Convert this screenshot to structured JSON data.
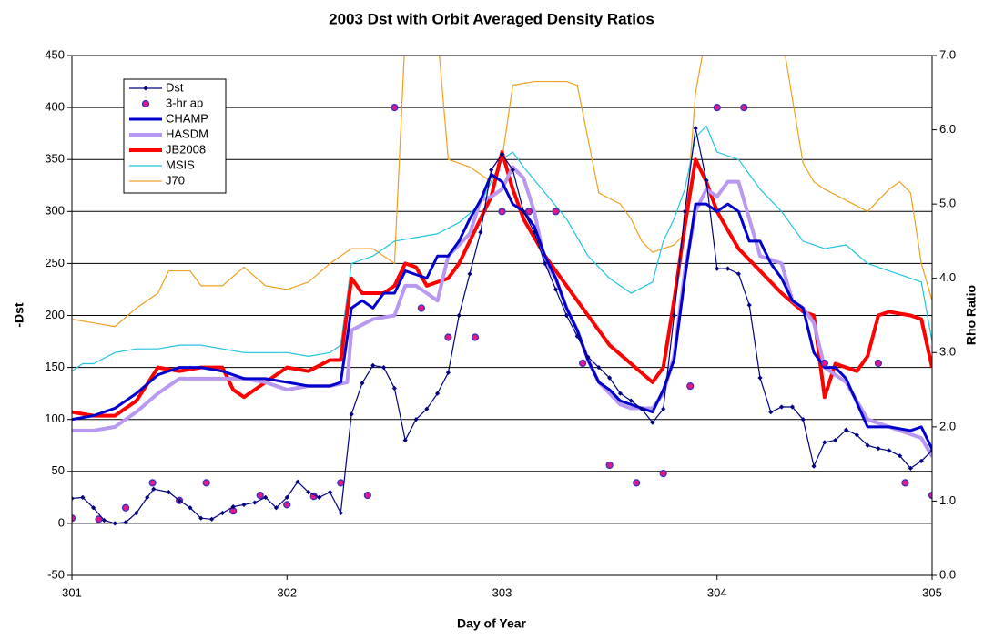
{
  "chart_data": {
    "type": "line",
    "title": "2003 Dst with Orbit Averaged Density Ratios",
    "xlabel": "Day of Year",
    "ylabel": "-Dst",
    "y2label": "Rho Ratio",
    "xlim": [
      301,
      305
    ],
    "xticks": [
      301,
      302,
      303,
      304,
      305
    ],
    "ylim": [
      -50,
      450
    ],
    "yticks": [
      -50,
      0,
      50,
      100,
      150,
      200,
      250,
      300,
      350,
      400,
      450
    ],
    "y2lim": [
      0,
      7
    ],
    "y2ticks": [
      {
        "value": 0,
        "label": "0.0"
      },
      {
        "value": 1,
        "label": "1.0"
      },
      {
        "value": 2,
        "label": "2.0"
      },
      {
        "value": 3,
        "label": "3.0"
      },
      {
        "value": 4,
        "label": "4.0"
      },
      {
        "value": 5,
        "label": "5.0"
      },
      {
        "value": 6,
        "label": "6.0"
      },
      {
        "value": 7,
        "label": "7.0"
      }
    ],
    "grid": true,
    "legend": "upper left",
    "series": [
      {
        "name": "Dst",
        "color": "#000080",
        "style": "line-diamond",
        "width": 1.2,
        "axis": "y",
        "x": [
          301.0,
          301.05,
          301.1,
          301.15,
          301.2,
          301.25,
          301.3,
          301.35,
          301.38,
          301.45,
          301.5,
          301.55,
          301.6,
          301.65,
          301.7,
          301.75,
          301.8,
          301.85,
          301.9,
          301.95,
          302.0,
          302.05,
          302.1,
          302.15,
          302.2,
          302.25,
          302.3,
          302.35,
          302.4,
          302.45,
          302.5,
          302.55,
          302.6,
          302.65,
          302.7,
          302.75,
          302.8,
          302.85,
          302.9,
          302.95,
          303.0,
          303.05,
          303.1,
          303.15,
          303.2,
          303.25,
          303.3,
          303.35,
          303.4,
          303.45,
          303.5,
          303.55,
          303.6,
          303.65,
          303.7,
          303.75,
          303.8,
          303.85,
          303.9,
          303.95,
          304.0,
          304.05,
          304.1,
          304.15,
          304.2,
          304.25,
          304.3,
          304.35,
          304.4,
          304.45,
          304.5,
          304.55,
          304.6,
          304.65,
          304.7,
          304.75,
          304.8,
          304.85,
          304.9,
          304.95,
          305.0
        ],
        "values": [
          24,
          25,
          15,
          3,
          0,
          1,
          10,
          25,
          33,
          30,
          22,
          15,
          5,
          4,
          10,
          16,
          18,
          20,
          25,
          15,
          25,
          40,
          30,
          25,
          30,
          10,
          105,
          135,
          152,
          150,
          130,
          80,
          100,
          110,
          125,
          145,
          200,
          240,
          280,
          340,
          355,
          340,
          300,
          280,
          250,
          225,
          200,
          180,
          160,
          150,
          140,
          125,
          118,
          110,
          97,
          110,
          200,
          300,
          380,
          330,
          245,
          245,
          240,
          210,
          140,
          107,
          112,
          112,
          100,
          55,
          78,
          80,
          90,
          85,
          75,
          72,
          70,
          65,
          53,
          60,
          70
        ]
      },
      {
        "name": "3-hr ap",
        "color": "#e0188c",
        "style": "scatter",
        "axis": "y",
        "x": [
          301.0,
          301.125,
          301.25,
          301.375,
          301.5,
          301.625,
          301.75,
          301.875,
          302.0,
          302.125,
          302.25,
          302.375,
          302.5,
          302.625,
          302.75,
          302.875,
          303.0,
          303.125,
          303.25,
          303.375,
          303.5,
          303.625,
          303.75,
          303.875,
          304.0,
          304.125,
          304.5,
          304.75,
          304.875,
          305.0
        ],
        "values": [
          5,
          4,
          15,
          39,
          22,
          39,
          12,
          27,
          18,
          26,
          39,
          27,
          400,
          207,
          179,
          179,
          300,
          300,
          300,
          154,
          56,
          39,
          48,
          132,
          400,
          400,
          154,
          154,
          39,
          27
        ]
      },
      {
        "name": "CHAMP",
        "color": "#0000cc",
        "style": "line",
        "width": 3,
        "axis": "y2",
        "x": [
          301.0,
          301.1,
          301.2,
          301.3,
          301.4,
          301.5,
          301.6,
          301.7,
          301.8,
          301.9,
          302.0,
          302.1,
          302.2,
          302.25,
          302.3,
          302.35,
          302.4,
          302.45,
          302.5,
          302.55,
          302.6,
          302.65,
          302.7,
          302.75,
          302.8,
          302.85,
          302.9,
          302.95,
          303.0,
          303.05,
          303.1,
          303.15,
          303.2,
          303.25,
          303.3,
          303.35,
          303.4,
          303.45,
          303.5,
          303.55,
          303.6,
          303.65,
          303.7,
          303.75,
          303.8,
          303.85,
          303.9,
          303.95,
          304.0,
          304.05,
          304.1,
          304.15,
          304.2,
          304.25,
          304.3,
          304.35,
          304.4,
          304.45,
          304.5,
          304.55,
          304.6,
          304.7,
          304.8,
          304.9,
          304.95,
          305.0
        ],
        "values": [
          2.1,
          2.15,
          2.25,
          2.45,
          2.7,
          2.8,
          2.8,
          2.75,
          2.65,
          2.65,
          2.6,
          2.55,
          2.55,
          2.6,
          3.6,
          3.7,
          3.6,
          3.8,
          3.8,
          4.1,
          4.05,
          4.0,
          4.3,
          4.3,
          4.5,
          4.8,
          5.05,
          5.4,
          5.3,
          5.0,
          4.9,
          4.7,
          4.3,
          4.0,
          3.6,
          3.3,
          2.9,
          2.6,
          2.5,
          2.35,
          2.3,
          2.25,
          2.2,
          2.5,
          2.9,
          4.0,
          5.0,
          5.0,
          4.9,
          5.0,
          4.9,
          4.5,
          4.5,
          4.2,
          4.0,
          3.7,
          3.6,
          3.0,
          2.8,
          2.8,
          2.65,
          2.0,
          2.0,
          1.95,
          2.0,
          1.7
        ]
      },
      {
        "name": "HASDM",
        "color": "#b898f0",
        "style": "line",
        "width": 4,
        "axis": "y2",
        "x": [
          301.0,
          301.1,
          301.2,
          301.3,
          301.4,
          301.5,
          301.6,
          301.7,
          301.8,
          301.9,
          302.0,
          302.1,
          302.2,
          302.28,
          302.3,
          302.4,
          302.5,
          302.55,
          302.6,
          302.7,
          302.75,
          302.85,
          302.9,
          302.95,
          303.0,
          303.05,
          303.1,
          303.15,
          303.2,
          303.25,
          303.3,
          303.35,
          303.4,
          303.45,
          303.5,
          303.55,
          303.6,
          303.7,
          303.75,
          303.8,
          303.85,
          303.9,
          303.95,
          304.0,
          304.05,
          304.1,
          304.15,
          304.2,
          304.3,
          304.35,
          304.4,
          304.45,
          304.5,
          304.6,
          304.7,
          304.8,
          304.9,
          304.95,
          305.0
        ],
        "values": [
          1.95,
          1.95,
          2.0,
          2.2,
          2.45,
          2.65,
          2.65,
          2.65,
          2.65,
          2.6,
          2.5,
          2.55,
          2.55,
          2.6,
          3.3,
          3.45,
          3.5,
          3.9,
          3.9,
          3.7,
          4.3,
          4.6,
          5.05,
          5.1,
          5.2,
          5.5,
          5.35,
          4.9,
          4.2,
          4.0,
          3.6,
          3.3,
          2.9,
          2.6,
          2.45,
          2.3,
          2.25,
          2.25,
          2.45,
          2.95,
          4.1,
          4.9,
          5.2,
          5.1,
          5.3,
          5.3,
          4.8,
          4.3,
          4.2,
          3.7,
          3.6,
          3.4,
          2.8,
          2.6,
          2.1,
          2.0,
          1.9,
          1.85,
          1.6
        ]
      },
      {
        "name": "JB2008",
        "color": "#ff0000",
        "style": "line",
        "width": 4,
        "axis": "y2",
        "x": [
          301.0,
          301.1,
          301.2,
          301.3,
          301.4,
          301.5,
          301.6,
          301.7,
          301.75,
          301.8,
          301.9,
          302.0,
          302.1,
          302.2,
          302.25,
          302.3,
          302.35,
          302.4,
          302.45,
          302.5,
          302.55,
          302.6,
          302.65,
          302.7,
          302.75,
          302.8,
          302.9,
          302.95,
          303.0,
          303.05,
          303.1,
          303.2,
          303.3,
          303.4,
          303.5,
          303.6,
          303.7,
          303.75,
          303.8,
          303.85,
          303.9,
          303.95,
          304.0,
          304.1,
          304.2,
          304.3,
          304.4,
          304.45,
          304.5,
          304.55,
          304.6,
          304.65,
          304.7,
          304.75,
          304.8,
          304.9,
          304.95,
          305.0
        ],
        "values": [
          2.2,
          2.15,
          2.15,
          2.35,
          2.8,
          2.75,
          2.8,
          2.8,
          2.5,
          2.4,
          2.6,
          2.8,
          2.75,
          2.9,
          2.9,
          4.0,
          3.8,
          3.8,
          3.8,
          3.9,
          4.2,
          4.15,
          3.9,
          3.95,
          4.0,
          4.2,
          4.8,
          5.1,
          5.7,
          5.2,
          4.8,
          4.3,
          3.9,
          3.5,
          3.1,
          2.85,
          2.6,
          2.8,
          3.7,
          4.7,
          5.6,
          5.3,
          4.9,
          4.4,
          4.1,
          3.8,
          3.55,
          3.5,
          2.4,
          2.85,
          2.8,
          2.75,
          2.95,
          3.5,
          3.55,
          3.5,
          3.45,
          2.8
        ]
      },
      {
        "name": "MSIS",
        "color": "#22c4e0",
        "style": "line",
        "width": 1.2,
        "axis": "y2",
        "x": [
          301.0,
          301.05,
          301.1,
          301.2,
          301.3,
          301.4,
          301.5,
          301.6,
          301.7,
          301.8,
          301.9,
          302.0,
          302.1,
          302.2,
          302.25,
          302.3,
          302.4,
          302.5,
          302.6,
          302.7,
          302.8,
          302.9,
          303.0,
          303.05,
          303.1,
          303.2,
          303.3,
          303.4,
          303.5,
          303.6,
          303.7,
          303.75,
          303.8,
          303.85,
          303.9,
          303.95,
          304.0,
          304.1,
          304.2,
          304.3,
          304.4,
          304.5,
          304.6,
          304.7,
          304.8,
          304.9,
          304.95,
          305.0
        ],
        "values": [
          2.75,
          2.85,
          2.85,
          3.0,
          3.05,
          3.05,
          3.1,
          3.1,
          3.05,
          3.0,
          3.0,
          3.0,
          2.95,
          3.0,
          3.1,
          4.2,
          4.3,
          4.5,
          4.55,
          4.6,
          4.75,
          5.0,
          5.6,
          5.7,
          5.5,
          5.15,
          4.8,
          4.3,
          4.0,
          3.8,
          3.95,
          4.5,
          4.8,
          5.2,
          5.9,
          6.05,
          5.7,
          5.6,
          5.2,
          4.9,
          4.5,
          4.4,
          4.45,
          4.2,
          4.1,
          4.0,
          3.95,
          3.15
        ]
      },
      {
        "name": "J70",
        "color": "#f0a020",
        "style": "line",
        "width": 1.2,
        "axis": "y2",
        "x": [
          301.0,
          301.1,
          301.2,
          301.3,
          301.4,
          301.45,
          301.55,
          301.6,
          301.7,
          301.8,
          301.9,
          302.0,
          302.1,
          302.2,
          302.3,
          302.4,
          302.5,
          302.55,
          302.7,
          302.75,
          302.85,
          302.95,
          303.0,
          303.05,
          303.15,
          303.3,
          303.35,
          303.45,
          303.55,
          303.6,
          303.65,
          303.7,
          303.8,
          303.85,
          303.9,
          303.95,
          304.3,
          304.4,
          304.45,
          304.5,
          304.6,
          304.7,
          304.8,
          304.85,
          304.9,
          304.95,
          305.0
        ],
        "values": [
          3.45,
          3.4,
          3.35,
          3.6,
          3.8,
          4.1,
          4.1,
          3.9,
          3.9,
          4.15,
          3.9,
          3.85,
          3.95,
          4.2,
          4.4,
          4.4,
          4.2,
          7.3,
          7.3,
          5.6,
          5.5,
          5.3,
          5.6,
          6.6,
          6.65,
          6.65,
          6.6,
          5.15,
          5.0,
          4.8,
          4.5,
          4.35,
          4.45,
          4.6,
          6.5,
          7.3,
          7.3,
          5.55,
          5.3,
          5.2,
          5.05,
          4.9,
          5.2,
          5.3,
          5.15,
          4.2,
          3.7
        ]
      }
    ]
  }
}
